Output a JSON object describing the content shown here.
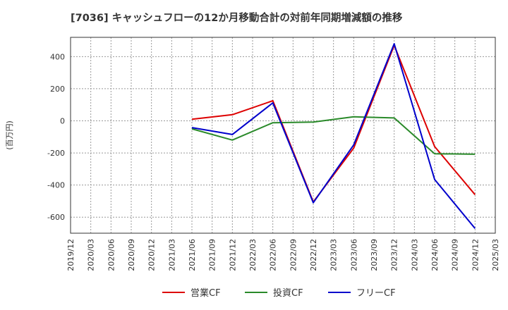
{
  "chart_data": {
    "type": "line",
    "title": "[7036]  キャッシュフローの12か月移動合計の対前年同期増減額の推移",
    "ylabel": "(百万円)",
    "xlabel": "",
    "ylim": [
      -700,
      520
    ],
    "yticks": [
      400,
      200,
      0,
      -200,
      -400,
      -600
    ],
    "grid": true,
    "legend_position": "bottom",
    "x_ticks": [
      "2019/12",
      "2020/03",
      "2020/06",
      "2020/09",
      "2020/12",
      "2021/03",
      "2021/06",
      "2021/09",
      "2021/12",
      "2022/03",
      "2022/06",
      "2022/09",
      "2022/12",
      "2023/03",
      "2023/06",
      "2023/09",
      "2023/12",
      "2024/03",
      "2024/06",
      "2024/09",
      "2024/12",
      "2025/03"
    ],
    "x": [
      "2021/06",
      "2021/12",
      "2022/06",
      "2022/12",
      "2023/06",
      "2023/12",
      "2024/06",
      "2024/12"
    ],
    "series": [
      {
        "name": "営業CF",
        "color": "#dd0000",
        "values": [
          10,
          38,
          125,
          -505,
          -170,
          470,
          -160,
          -460
        ]
      },
      {
        "name": "投資CF",
        "color": "#2a8a2a",
        "values": [
          -50,
          -120,
          -12,
          -8,
          25,
          18,
          -205,
          -208
        ]
      },
      {
        "name": "フリーCF",
        "color": "#0000cc",
        "values": [
          -42,
          -85,
          112,
          -510,
          -150,
          480,
          -365,
          -670
        ]
      }
    ]
  }
}
